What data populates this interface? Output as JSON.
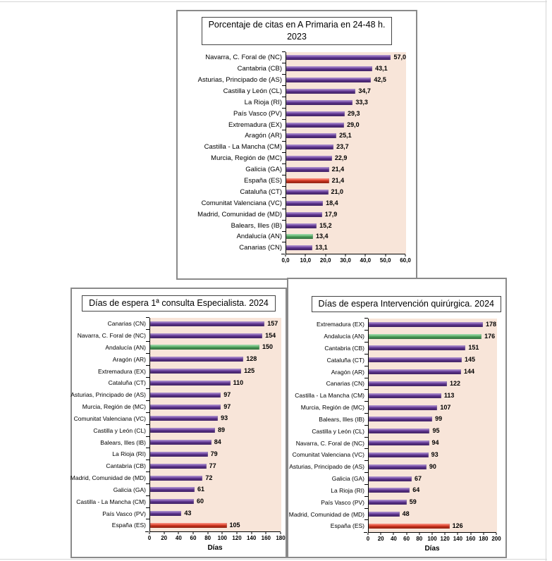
{
  "colors": {
    "purple": "#6C3BA6",
    "red": "#EE3A21",
    "green": "#57BA69",
    "plot_bg": "#F8E5D9"
  },
  "chart_data": [
    {
      "type": "bar",
      "orientation": "horizontal",
      "title": "Porcentaje de citas en A Primaria en 24-48 h. 2023",
      "title_lines": [
        "Porcentaje de citas en A Primaria en 24-48 h.",
        "2023"
      ],
      "xlabel": "",
      "xlim": [
        0,
        60
      ],
      "xticks": [
        "0,0",
        "10,0",
        "20,0",
        "30,0",
        "40,0",
        "50,0",
        "60,0"
      ],
      "legend": "none",
      "grid": false,
      "points": [
        {
          "label": "Navarra, C. Foral de (NC)",
          "value": 57.0,
          "display": "57,0",
          "color": "purple"
        },
        {
          "label": "Cantabria (CB)",
          "value": 43.1,
          "display": "43,1",
          "color": "purple"
        },
        {
          "label": "Asturias, Principado de (AS)",
          "value": 42.5,
          "display": "42,5",
          "color": "purple"
        },
        {
          "label": "Castilla y León (CL)",
          "value": 34.7,
          "display": "34,7",
          "color": "purple"
        },
        {
          "label": "La Rioja (RI)",
          "value": 33.3,
          "display": "33,3",
          "color": "purple"
        },
        {
          "label": "País Vasco (PV)",
          "value": 29.3,
          "display": "29,3",
          "color": "purple"
        },
        {
          "label": "Extremadura (EX)",
          "value": 29.0,
          "display": "29,0",
          "color": "purple"
        },
        {
          "label": "Aragón (AR)",
          "value": 25.1,
          "display": "25,1",
          "color": "purple"
        },
        {
          "label": "Castilla - La Mancha (CM)",
          "value": 23.7,
          "display": "23,7",
          "color": "purple"
        },
        {
          "label": "Murcia, Región de (MC)",
          "value": 22.9,
          "display": "22,9",
          "color": "purple"
        },
        {
          "label": "Galicia (GA)",
          "value": 21.4,
          "display": "21,4",
          "color": "purple"
        },
        {
          "label": "España (ES)",
          "value": 21.4,
          "display": "21,4",
          "color": "red"
        },
        {
          "label": "Cataluña (CT)",
          "value": 21.0,
          "display": "21,0",
          "color": "purple"
        },
        {
          "label": "Comunitat Valenciana (VC)",
          "value": 18.4,
          "display": "18,4",
          "color": "purple"
        },
        {
          "label": "Madrid, Comunidad de (MD)",
          "value": 17.9,
          "display": "17,9",
          "color": "purple"
        },
        {
          "label": "Balears, Illes (IB)",
          "value": 15.2,
          "display": "15,2",
          "color": "purple"
        },
        {
          "label": "Andalucía (AN)",
          "value": 13.4,
          "display": "13,4",
          "color": "green"
        },
        {
          "label": "Canarias (CN)",
          "value": 13.1,
          "display": "13,1",
          "color": "purple"
        }
      ]
    },
    {
      "type": "bar",
      "orientation": "horizontal",
      "title": "Días de espera 1ª consulta Especialista. 2024",
      "title_lines": [
        "Días de espera 1ª consulta Especialista. 2024"
      ],
      "xlabel": "Días",
      "xlim": [
        0,
        180
      ],
      "xticks": [
        "0",
        "20",
        "40",
        "60",
        "80",
        "100",
        "120",
        "140",
        "160",
        "180"
      ],
      "legend": "none",
      "grid": false,
      "points": [
        {
          "label": "Canarias (CN)",
          "value": 157,
          "display": "157",
          "color": "purple"
        },
        {
          "label": "Navarra, C. Foral de (NC)",
          "value": 154,
          "display": "154",
          "color": "purple"
        },
        {
          "label": "Andalucía (AN)",
          "value": 150,
          "display": "150",
          "color": "green"
        },
        {
          "label": "Aragón (AR)",
          "value": 128,
          "display": "128",
          "color": "purple"
        },
        {
          "label": "Extremadura (EX)",
          "value": 125,
          "display": "125",
          "color": "purple"
        },
        {
          "label": "Cataluña (CT)",
          "value": 110,
          "display": "110",
          "color": "purple"
        },
        {
          "label": "Asturias, Principado de (AS)",
          "value": 97,
          "display": "97",
          "color": "purple"
        },
        {
          "label": "Murcia, Región de (MC)",
          "value": 97,
          "display": "97",
          "color": "purple"
        },
        {
          "label": "Comunitat Valenciana (VC)",
          "value": 93,
          "display": "93",
          "color": "purple"
        },
        {
          "label": "Castilla y León (CL)",
          "value": 89,
          "display": "89",
          "color": "purple"
        },
        {
          "label": "Balears, Illes (IB)",
          "value": 84,
          "display": "84",
          "color": "purple"
        },
        {
          "label": "La Rioja (RI)",
          "value": 79,
          "display": "79",
          "color": "purple"
        },
        {
          "label": "Cantabria (CB)",
          "value": 77,
          "display": "77",
          "color": "purple"
        },
        {
          "label": "Madrid, Comunidad de (MD)",
          "value": 72,
          "display": "72",
          "color": "purple"
        },
        {
          "label": "Galicia (GA)",
          "value": 61,
          "display": "61",
          "color": "purple"
        },
        {
          "label": "Castilla - La Mancha (CM)",
          "value": 60,
          "display": "60",
          "color": "purple"
        },
        {
          "label": "País Vasco (PV)",
          "value": 43,
          "display": "43",
          "color": "purple"
        },
        {
          "label": "España (ES)",
          "value": 105,
          "display": "105",
          "color": "red"
        }
      ]
    },
    {
      "type": "bar",
      "orientation": "horizontal",
      "title": "Días de espera Intervención quirúrgica. 2024",
      "title_lines": [
        "Días de espera Intervención quirúrgica. 2024"
      ],
      "xlabel": "Días",
      "xlim": [
        0,
        200
      ],
      "xticks": [
        "0",
        "20",
        "40",
        "60",
        "80",
        "100",
        "120",
        "140",
        "160",
        "180",
        "200"
      ],
      "legend": "none",
      "grid": false,
      "points": [
        {
          "label": "Extremadura (EX)",
          "value": 178,
          "display": "178",
          "color": "purple"
        },
        {
          "label": "Andalucía (AN)",
          "value": 176,
          "display": "176",
          "color": "green"
        },
        {
          "label": "Cantabria (CB)",
          "value": 151,
          "display": "151",
          "color": "purple"
        },
        {
          "label": "Cataluña (CT)",
          "value": 145,
          "display": "145",
          "color": "purple"
        },
        {
          "label": "Aragón (AR)",
          "value": 144,
          "display": "144",
          "color": "purple"
        },
        {
          "label": "Canarias (CN)",
          "value": 122,
          "display": "122",
          "color": "purple"
        },
        {
          "label": "Castilla - La Mancha (CM)",
          "value": 113,
          "display": "113",
          "color": "purple"
        },
        {
          "label": "Murcia, Región de (MC)",
          "value": 107,
          "display": "107",
          "color": "purple"
        },
        {
          "label": "Balears, Illes (IB)",
          "value": 99,
          "display": "99",
          "color": "purple"
        },
        {
          "label": "Castilla y León (CL)",
          "value": 95,
          "display": "95",
          "color": "purple"
        },
        {
          "label": "Navarra, C. Foral de (NC)",
          "value": 94,
          "display": "94",
          "color": "purple"
        },
        {
          "label": "Comunitat Valenciana (VC)",
          "value": 93,
          "display": "93",
          "color": "purple"
        },
        {
          "label": "Asturias, Principado de (AS)",
          "value": 90,
          "display": "90",
          "color": "purple"
        },
        {
          "label": "Galicia (GA)",
          "value": 67,
          "display": "67",
          "color": "purple"
        },
        {
          "label": "La Rioja (RI)",
          "value": 64,
          "display": "64",
          "color": "purple"
        },
        {
          "label": "País Vasco (PV)",
          "value": 59,
          "display": "59",
          "color": "purple"
        },
        {
          "label": "Madrid, Comunidad de (MD)",
          "value": 48,
          "display": "48",
          "color": "purple"
        },
        {
          "label": "España (ES)",
          "value": 126,
          "display": "126",
          "color": "red"
        }
      ]
    }
  ]
}
